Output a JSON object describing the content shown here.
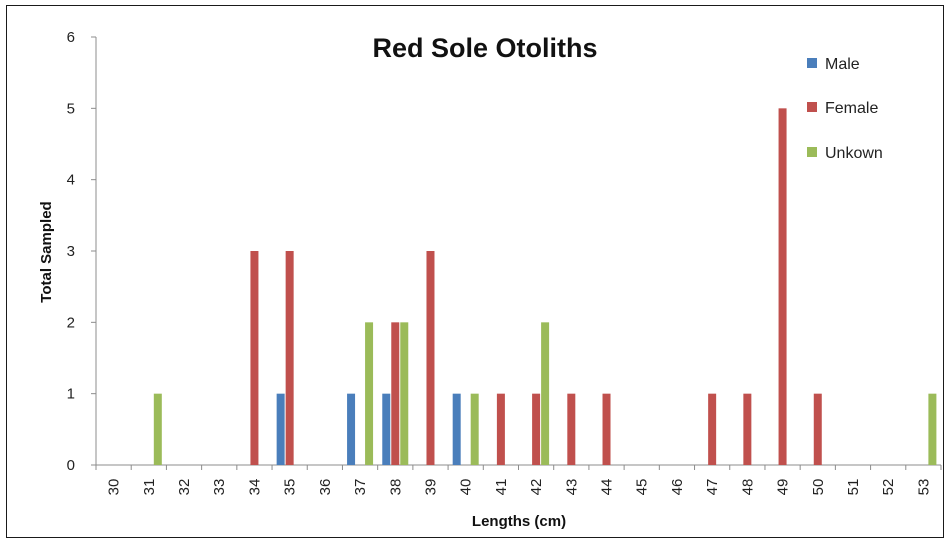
{
  "chart_data": {
    "type": "bar",
    "title": "Red Sole Otoliths",
    "xlabel": "Lengths (cm)",
    "ylabel": "Total Sampled",
    "ylim": [
      0,
      6
    ],
    "yticks": [
      "0",
      "1",
      "2",
      "3",
      "4",
      "5",
      "6"
    ],
    "categories": [
      "30",
      "31",
      "32",
      "33",
      "34",
      "35",
      "36",
      "37",
      "38",
      "39",
      "40",
      "41",
      "42",
      "43",
      "44",
      "45",
      "46",
      "47",
      "48",
      "49",
      "50",
      "51",
      "52",
      "53"
    ],
    "series": [
      {
        "name": "Male",
        "color": "#4a7ebb",
        "values": [
          0,
          0,
          0,
          0,
          0,
          1,
          0,
          1,
          1,
          0,
          1,
          0,
          0,
          0,
          0,
          0,
          0,
          0,
          0,
          0,
          0,
          0,
          0,
          0
        ]
      },
      {
        "name": "Female",
        "color": "#c0504d",
        "values": [
          0,
          0,
          0,
          0,
          3,
          3,
          0,
          0,
          2,
          3,
          0,
          1,
          1,
          1,
          1,
          0,
          0,
          1,
          1,
          5,
          1,
          0,
          0,
          0
        ]
      },
      {
        "name": "Unkown",
        "color": "#9bbb59",
        "values": [
          0,
          1,
          0,
          0,
          0,
          0,
          0,
          2,
          2,
          0,
          1,
          0,
          2,
          0,
          0,
          0,
          0,
          0,
          0,
          0,
          0,
          0,
          0,
          1
        ]
      }
    ],
    "legend_position": "top-right",
    "grid": false
  }
}
